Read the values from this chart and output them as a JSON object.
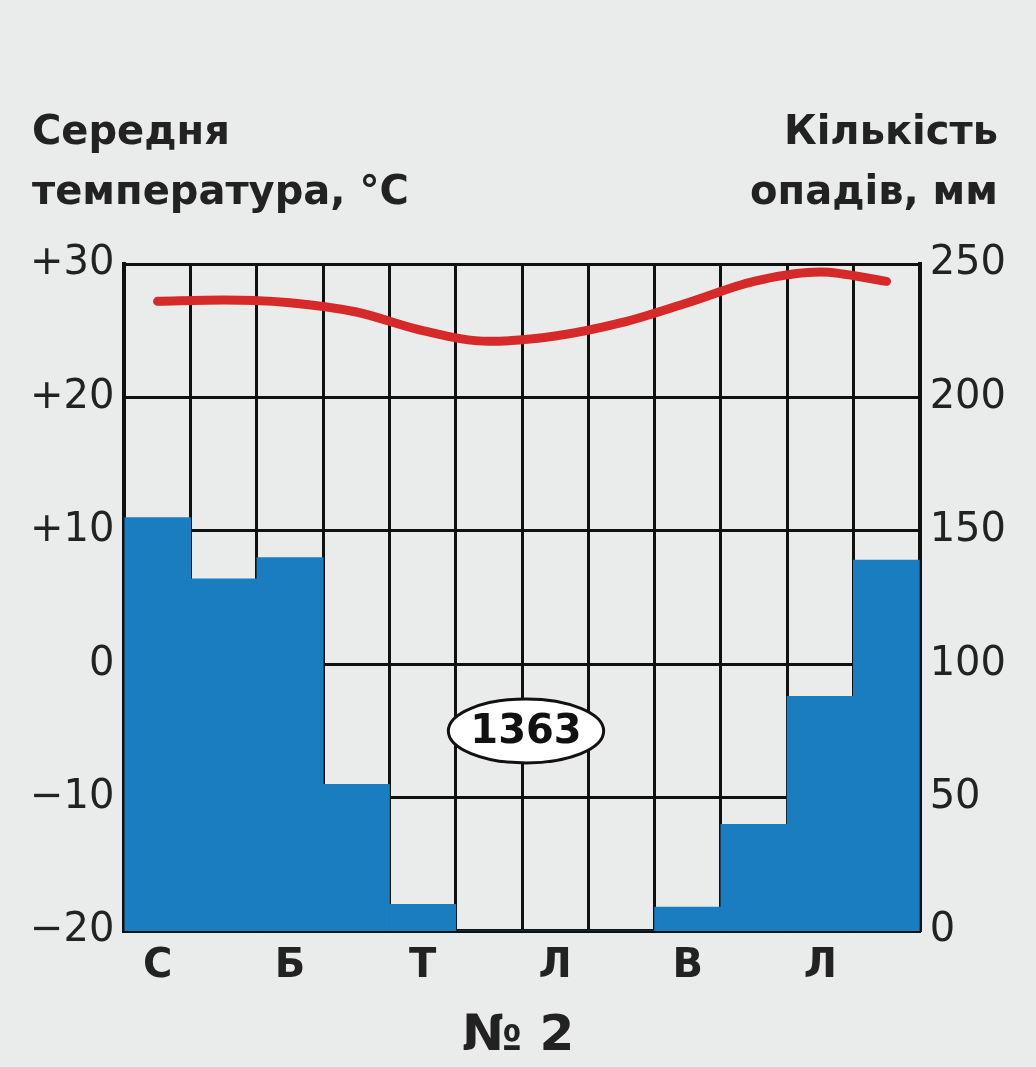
{
  "chart_data": {
    "type": "bar",
    "title": "№ 2",
    "ylabel": "Середня температура, °C",
    "y2label": "Кількість опадів, мм",
    "categories": [
      "С",
      null,
      "Б",
      null,
      "Т",
      null,
      "Л",
      null,
      "В",
      null,
      "Л",
      null
    ],
    "series": [
      {
        "axis": "y2",
        "color": "#1a7dc0",
        "values": [
          155,
          132,
          140,
          55,
          10,
          0,
          0,
          0,
          9,
          40,
          88,
          139
        ]
      },
      {
        "type": "line",
        "axis": "y",
        "color": "#d62a2a",
        "values": [
          27.2,
          27.3,
          27.1,
          26.4,
          25.0,
          24.2,
          24.6,
          25.6,
          27.1,
          28.7,
          29.4,
          28.7
        ]
      }
    ],
    "ylim": [
      -20,
      30
    ],
    "yticks": [
      {
        "value": -20,
        "label": "−20"
      },
      {
        "value": -10,
        "label": "−10"
      },
      0,
      {
        "value": 10,
        "label": "+10"
      },
      {
        "value": 20,
        "label": "+20"
      },
      {
        "value": 30,
        "label": "+30"
      }
    ],
    "y2lim": [
      0,
      250
    ],
    "y2ticks": [
      0,
      50,
      100,
      150,
      200,
      250
    ],
    "annotations": [
      "1363"
    ],
    "grid": true,
    "legend": false,
    "marker": "none"
  }
}
